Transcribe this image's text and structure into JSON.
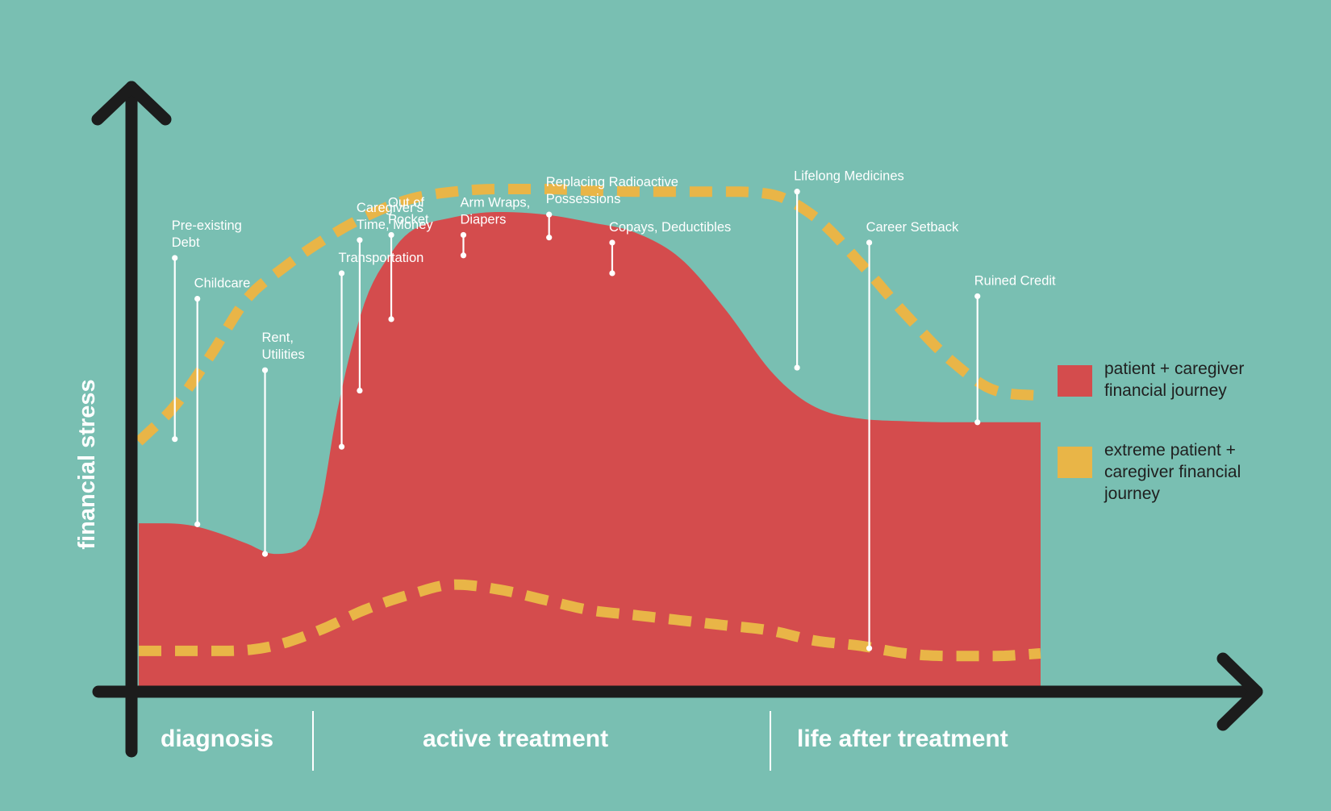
{
  "chart_data": {
    "type": "area",
    "title": "",
    "ylabel": "financial stress",
    "xlabel": "",
    "xlim": [
      0,
      100
    ],
    "ylim": [
      0,
      100
    ],
    "grid": false,
    "legend_position": "right",
    "colors": {
      "background": "#79bfb2",
      "journey": "#d44c4d",
      "extreme": "#e9b547",
      "axis": "#1c1c1c",
      "text": "#ffffff",
      "legend_text": "#1f1f1f"
    },
    "phases": [
      {
        "label": "diagnosis",
        "start": 0,
        "end": 20
      },
      {
        "label": "active treatment",
        "start": 20,
        "end": 71
      },
      {
        "label": "life after treatment",
        "start": 71,
        "end": 100
      }
    ],
    "series": [
      {
        "name": "patient + caregiver financial journey",
        "style": "filled-area",
        "color": "#d44c4d",
        "x": [
          0,
          3,
          6,
          9,
          12,
          15,
          18,
          20,
          22,
          25,
          28,
          30,
          35,
          40,
          45,
          50,
          55,
          60,
          65,
          70,
          73,
          76,
          80,
          85,
          90,
          95,
          100
        ],
        "y": [
          33,
          33,
          32.5,
          31,
          29,
          27,
          28,
          35,
          55,
          76,
          86,
          90,
          93,
          94,
          93.5,
          92,
          90,
          85,
          75,
          63,
          58,
          55,
          53.5,
          53,
          52.8,
          52.8,
          52.8
        ]
      },
      {
        "name": "extreme patient + caregiver financial journey",
        "style": "dashed-line",
        "color": "#e9b547",
        "x": [
          0,
          4,
          8,
          12,
          16,
          20,
          25,
          30,
          35,
          40,
          45,
          50,
          55,
          60,
          65,
          70,
          75,
          80,
          85,
          90,
          95,
          100
        ],
        "y": [
          49,
          56,
          66,
          77,
          83,
          88,
          93,
          96.5,
          98,
          98.5,
          98.5,
          98.2,
          98,
          98,
          98,
          97.5,
          93,
          84,
          74,
          65,
          59,
          58
        ]
      },
      {
        "name": "extreme patient + caregiver financial journey (lower bound)",
        "style": "dashed-line",
        "color": "#e9b547",
        "x": [
          0,
          5,
          10,
          15,
          20,
          25,
          30,
          35,
          40,
          45,
          50,
          55,
          60,
          65,
          70,
          75,
          80,
          85,
          90,
          95,
          100
        ],
        "y": [
          8,
          8,
          8,
          9,
          12,
          16,
          19,
          21,
          20,
          18,
          16,
          15,
          14,
          13,
          12,
          10,
          9,
          7.5,
          7,
          7,
          7.5
        ]
      }
    ],
    "annotations": [
      {
        "lines": [
          "Pre-existing",
          "Debt"
        ],
        "x": 4,
        "y": 49.5,
        "top": 85
      },
      {
        "lines": [
          "Childcare"
        ],
        "x": 6.5,
        "y": 32.8,
        "top": 77
      },
      {
        "lines": [
          "Rent,",
          "Utilities"
        ],
        "x": 14,
        "y": 27,
        "top": 63
      },
      {
        "lines": [
          "Transportation"
        ],
        "x": 22.5,
        "y": 48,
        "top": 82
      },
      {
        "lines": [
          "Caregiver's",
          "Time, Money"
        ],
        "x": 24.5,
        "y": 59,
        "top": 88.5
      },
      {
        "lines": [
          "Out of",
          "Pocket"
        ],
        "x": 28,
        "y": 73,
        "top": 89.5
      },
      {
        "lines": [
          "Arm Wraps,",
          "Diapers"
        ],
        "x": 36,
        "y": 85.5,
        "top": 89.5
      },
      {
        "lines": [
          "Replacing Radioactive",
          "Possessions"
        ],
        "x": 45.5,
        "y": 89,
        "top": 93.5
      },
      {
        "lines": [
          "Copays, Deductibles"
        ],
        "x": 52.5,
        "y": 82,
        "top": 88
      },
      {
        "lines": [
          "Lifelong Medicines"
        ],
        "x": 73,
        "y": 63.5,
        "top": 98
      },
      {
        "lines": [
          "Career Setback"
        ],
        "x": 81,
        "y": 8.5,
        "top": 88
      },
      {
        "lines": [
          "Ruined Credit"
        ],
        "x": 93,
        "y": 52.8,
        "top": 77.5
      }
    ]
  }
}
